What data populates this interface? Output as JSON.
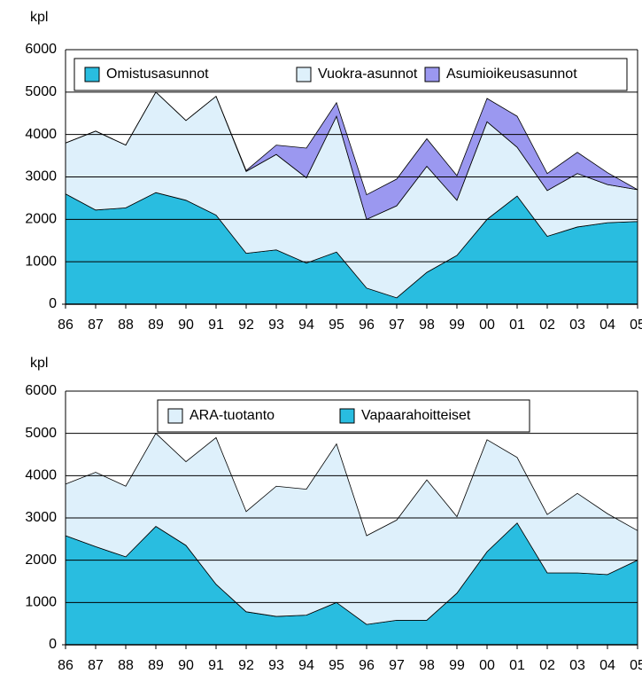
{
  "chart_data": [
    {
      "type": "stacked_area",
      "y_label": "kpl",
      "categories": [
        "86",
        "87",
        "88",
        "89",
        "90",
        "91",
        "92",
        "93",
        "94",
        "95",
        "96",
        "97",
        "98",
        "99",
        "00",
        "01",
        "02",
        "03",
        "04",
        "05"
      ],
      "series": [
        {
          "name": "Omistusasunnot",
          "color": "#29bde0",
          "values": [
            2600,
            2220,
            2270,
            2630,
            2450,
            2100,
            1200,
            1280,
            970,
            1230,
            380,
            150,
            750,
            1150,
            2000,
            2550,
            1600,
            1820,
            1920,
            1950
          ]
        },
        {
          "name": "Vuokra-asunnot",
          "color": "#def0fb",
          "values": [
            1200,
            1860,
            1480,
            2370,
            1880,
            2800,
            1930,
            2250,
            2010,
            3200,
            1620,
            2170,
            2500,
            1300,
            2300,
            1150,
            1080,
            1260,
            900,
            750
          ]
        },
        {
          "name": "Asumioikeusasunnot",
          "color": "#9b98f0",
          "values": [
            0,
            0,
            0,
            0,
            0,
            0,
            20,
            220,
            700,
            320,
            580,
            630,
            650,
            580,
            550,
            730,
            400,
            500,
            280,
            0
          ]
        }
      ],
      "ylim": [
        0,
        6000
      ],
      "yticks": [
        0,
        1000,
        2000,
        3000,
        4000,
        5000,
        6000
      ],
      "grid": true,
      "legend": "top"
    },
    {
      "type": "stacked_area",
      "y_label": "kpl",
      "categories": [
        "86",
        "87",
        "88",
        "89",
        "90",
        "91",
        "92",
        "93",
        "94",
        "95",
        "96",
        "97",
        "98",
        "99",
        "00",
        "01",
        "02",
        "03",
        "04",
        "05"
      ],
      "series": [
        {
          "name": "Vapaarahoitteiset",
          "color": "#29bde0",
          "values": [
            2580,
            2320,
            2080,
            2800,
            2350,
            1430,
            780,
            670,
            700,
            1000,
            480,
            580,
            580,
            1220,
            2200,
            2880,
            1700,
            1700,
            1660,
            2000
          ]
        },
        {
          "name": "ARA-tuotanto",
          "color": "#def0fb",
          "values": [
            1220,
            1760,
            1670,
            2200,
            1980,
            3470,
            2370,
            3080,
            2980,
            3750,
            2100,
            2370,
            3320,
            1810,
            2650,
            1550,
            1380,
            1880,
            1440,
            700
          ]
        }
      ],
      "legend_order": [
        1,
        0
      ],
      "ylim": [
        0,
        6000
      ],
      "yticks": [
        0,
        1000,
        2000,
        3000,
        4000,
        5000,
        6000
      ],
      "grid": true,
      "legend": "top"
    }
  ]
}
